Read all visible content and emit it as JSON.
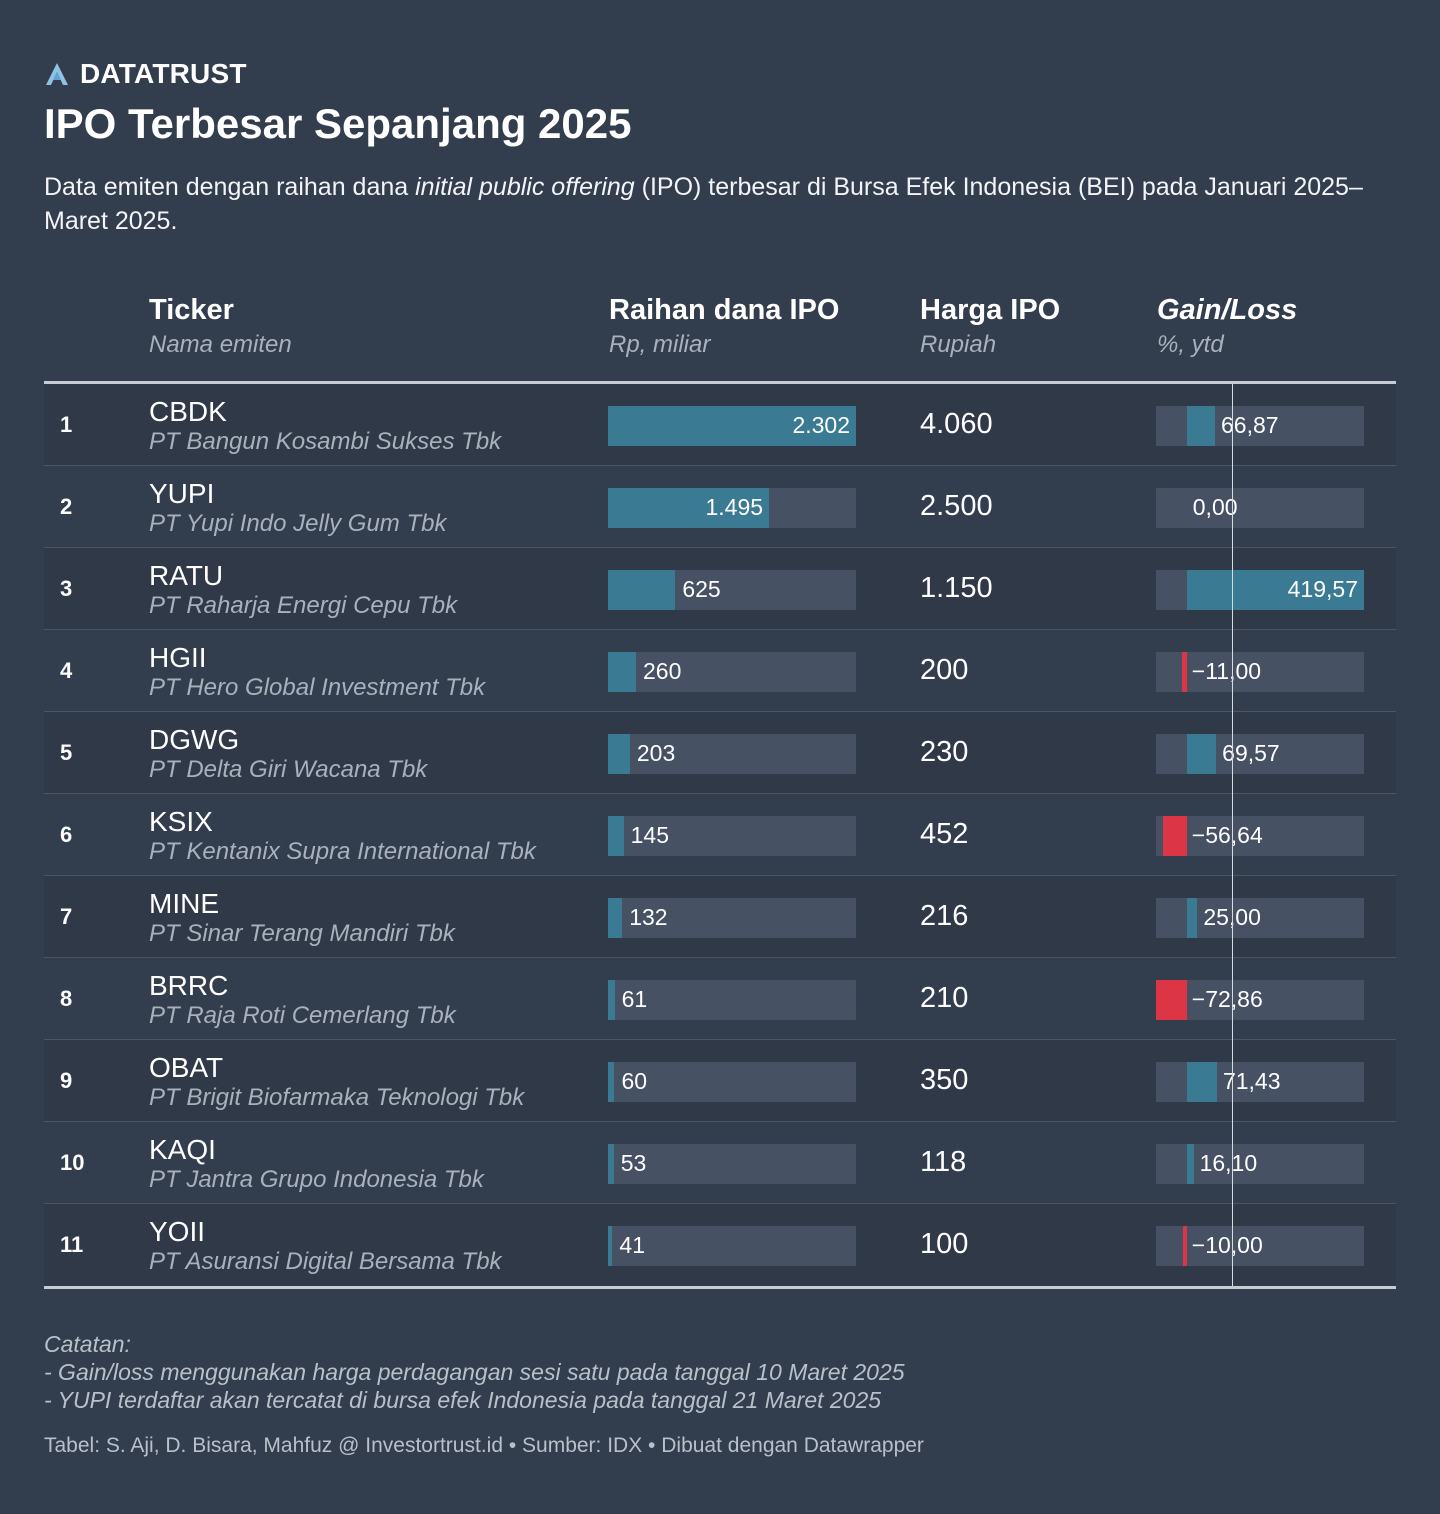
{
  "brand": {
    "name": "DATATRUST",
    "logo_icon": "datatrust-a-logo-icon"
  },
  "title": "IPO Terbesar Sepanjang 2025",
  "subtitle": {
    "part1": "Data emiten dengan raihan dana ",
    "italic": "initial public offering",
    "part2": " (IPO) terbesar di Bursa Efek Indonesia (BEI) pada Januari 2025–Maret 2025."
  },
  "headers": {
    "ticker": {
      "main": "Ticker",
      "sub": "Nama emiten"
    },
    "raihan": {
      "main": "Raihan dana IPO",
      "sub": "Rp, miliar"
    },
    "harga": {
      "main": "Harga IPO",
      "sub": "Rupiah"
    },
    "gain": {
      "main": "Gain/Loss",
      "sub": "%, ytd"
    }
  },
  "colors": {
    "bar": "#3b7a93",
    "negative": "#dc3545",
    "track": "#465163"
  },
  "chart_data": {
    "type": "table",
    "title": "IPO Terbesar Sepanjang 2025",
    "columns": [
      "#",
      "Ticker / Nama emiten",
      "Raihan dana IPO (Rp, miliar)",
      "Harga IPO (Rupiah)",
      "Gain/Loss (%, ytd)"
    ],
    "raihan_max": 2302,
    "gain_range": [
      -72.86,
      419.57
    ],
    "rows": [
      {
        "rank": "1",
        "ticker": "CBDK",
        "company": "PT Bangun Kosambi Sukses Tbk",
        "raihan": 2302,
        "raihan_label": "2.302",
        "harga": "4.060",
        "gain": 66.87,
        "gain_label": "66,87"
      },
      {
        "rank": "2",
        "ticker": "YUPI",
        "company": "PT Yupi Indo Jelly Gum Tbk",
        "raihan": 1495,
        "raihan_label": "1.495",
        "harga": "2.500",
        "gain": 0.0,
        "gain_label": "0,00"
      },
      {
        "rank": "3",
        "ticker": "RATU",
        "company": "PT Raharja Energi Cepu Tbk",
        "raihan": 625,
        "raihan_label": "625",
        "harga": "1.150",
        "gain": 419.57,
        "gain_label": "419,57"
      },
      {
        "rank": "4",
        "ticker": "HGII",
        "company": "PT Hero Global Investment Tbk",
        "raihan": 260,
        "raihan_label": "260",
        "harga": "200",
        "gain": -11.0,
        "gain_label": "−11,00"
      },
      {
        "rank": "5",
        "ticker": "DGWG",
        "company": "PT Delta Giri Wacana Tbk",
        "raihan": 203,
        "raihan_label": "203",
        "harga": "230",
        "gain": 69.57,
        "gain_label": "69,57"
      },
      {
        "rank": "6",
        "ticker": "KSIX",
        "company": "PT Kentanix Supra International Tbk",
        "raihan": 145,
        "raihan_label": "145",
        "harga": "452",
        "gain": -56.64,
        "gain_label": "−56,64"
      },
      {
        "rank": "7",
        "ticker": "MINE",
        "company": "PT Sinar Terang Mandiri Tbk",
        "raihan": 132,
        "raihan_label": "132",
        "harga": "216",
        "gain": 25.0,
        "gain_label": "25,00"
      },
      {
        "rank": "8",
        "ticker": "BRRC",
        "company": "PT Raja Roti Cemerlang Tbk",
        "raihan": 61,
        "raihan_label": "61",
        "harga": "210",
        "gain": -72.86,
        "gain_label": "−72,86"
      },
      {
        "rank": "9",
        "ticker": "OBAT",
        "company": "PT Brigit Biofarmaka Teknologi Tbk",
        "raihan": 60,
        "raihan_label": "60",
        "harga": "350",
        "gain": 71.43,
        "gain_label": "71,43"
      },
      {
        "rank": "10",
        "ticker": "KAQI",
        "company": "PT Jantra Grupo Indonesia Tbk",
        "raihan": 53,
        "raihan_label": "53",
        "harga": "118",
        "gain": 16.1,
        "gain_label": "16,10"
      },
      {
        "rank": "11",
        "ticker": "YOII",
        "company": "PT Asuransi Digital Bersama Tbk",
        "raihan": 41,
        "raihan_label": "41",
        "harga": "100",
        "gain": -10.0,
        "gain_label": "−10,00"
      }
    ]
  },
  "notes": {
    "heading": "Catatan:",
    "line1": "- Gain/loss menggunakan harga perdagangan sesi satu pada tanggal 10 Maret 2025",
    "line2": "- YUPI terdaftar akan tercatat di bursa efek Indonesia pada tanggal 21 Maret 2025"
  },
  "credit": "Tabel: S. Aji, D. Bisara, Mahfuz @ Investortrust.id • Sumber: IDX • Dibuat dengan Datawrapper"
}
